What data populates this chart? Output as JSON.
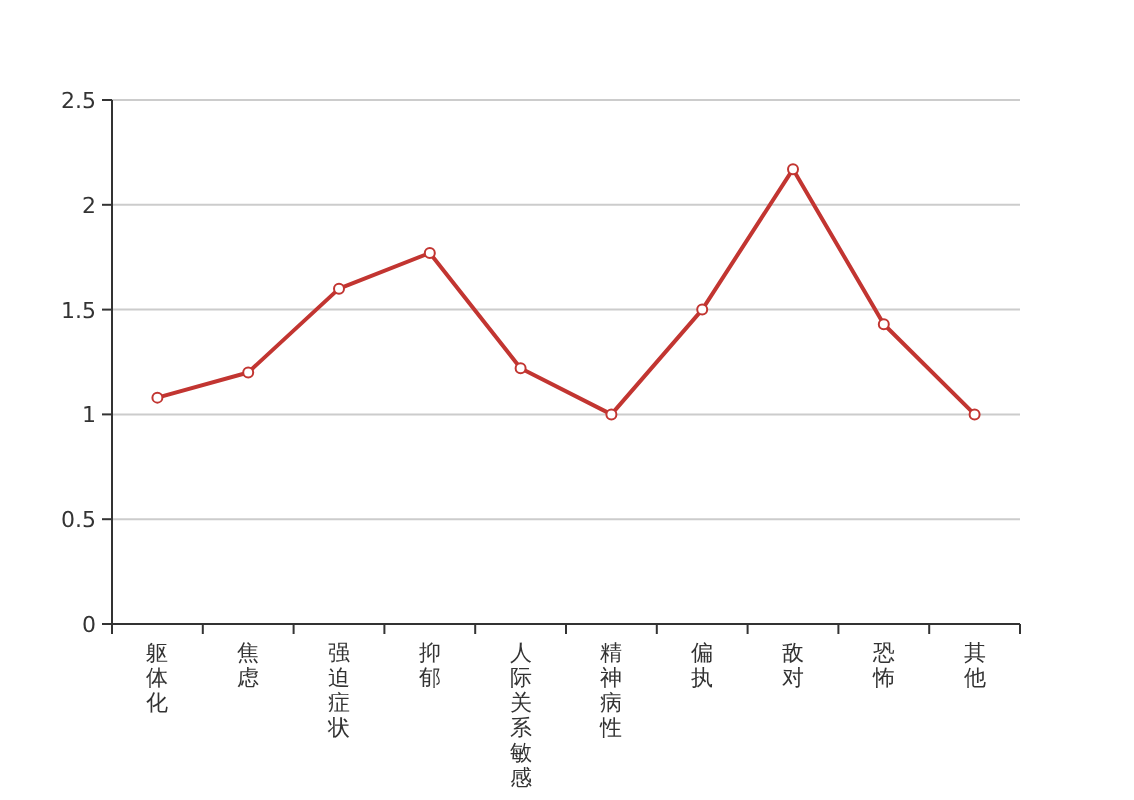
{
  "chart_data": {
    "type": "line",
    "categories": [
      "躯体化",
      "焦虑",
      "强迫症状",
      "抑郁",
      "人际关系敏感",
      "精神病性",
      "偏执",
      "敌对",
      "恐怖",
      "其他"
    ],
    "series": [
      {
        "color": "#c23531",
        "values": [
          1.08,
          1.2,
          1.6,
          1.77,
          1.22,
          1.0,
          1.5,
          2.17,
          1.43,
          1.0
        ]
      }
    ],
    "ylim": [
      0,
      2.5
    ],
    "yticks": [
      0,
      0.5,
      1,
      1.5,
      2,
      2.5
    ],
    "grid": "y",
    "marker": "circle",
    "line_style": "solid"
  }
}
